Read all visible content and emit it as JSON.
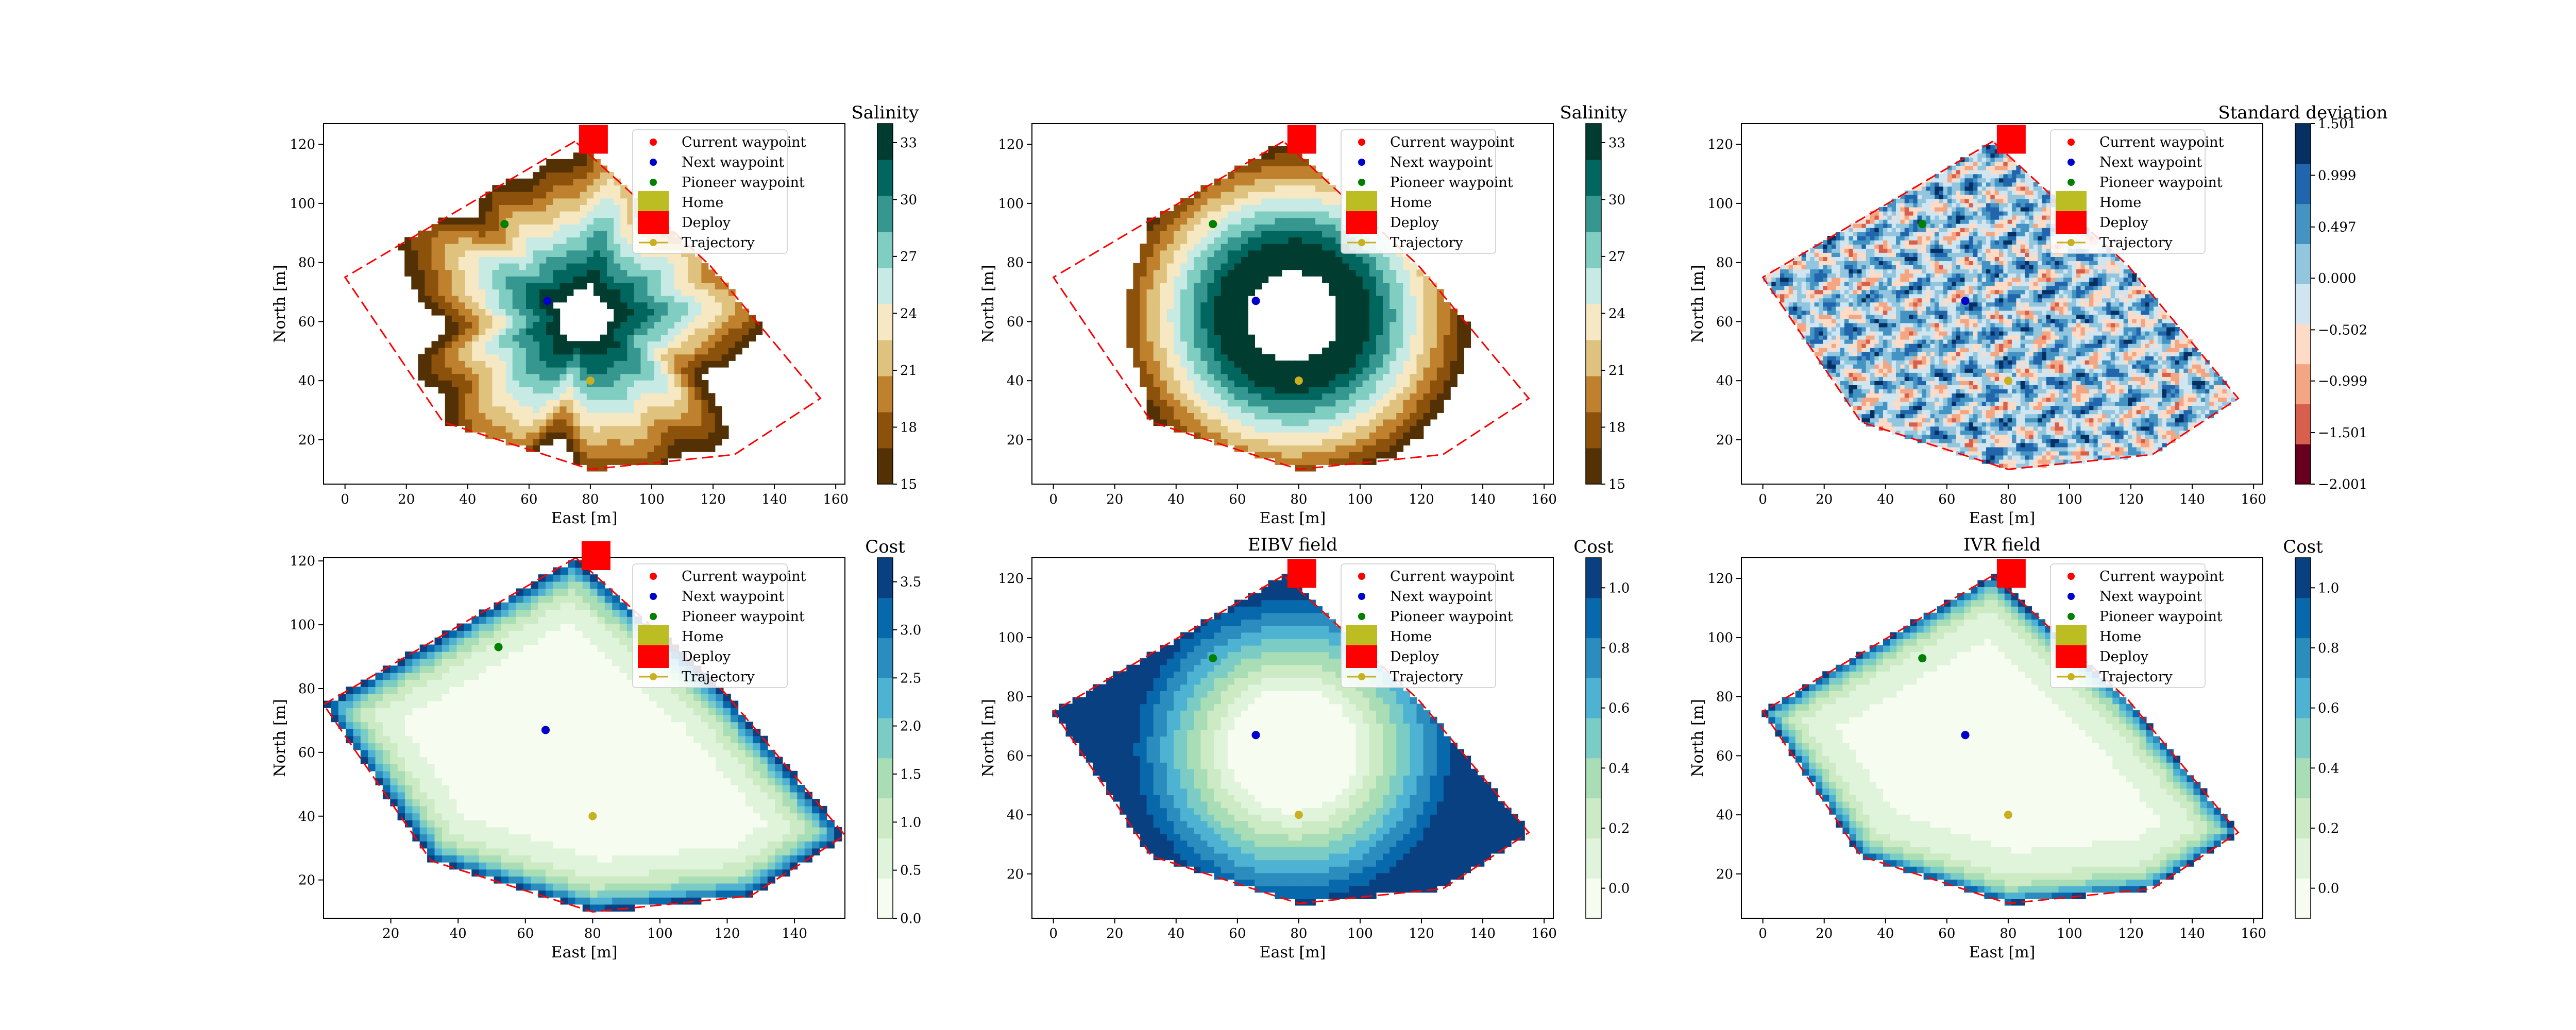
{
  "figure": {
    "layout": "2x3 grid of contour map panels"
  },
  "colors": {
    "boundary": "#ff0000",
    "current": "#ff0000",
    "next": "#0000cc",
    "pioneer": "#008000",
    "home": "#bcbd22",
    "deploy": "#ff0000",
    "trajectory": "#c9b020",
    "colormap_salinity": [
      "#543005",
      "#8c510a",
      "#bf812d",
      "#dfc27d",
      "#f6e8c3",
      "#c7eae5",
      "#80cdc1",
      "#35978f",
      "#01665e",
      "#003c30"
    ],
    "colormap_std": [
      "#67001f",
      "#d6604d",
      "#f4a582",
      "#fddbc7",
      "#d1e5f0",
      "#92c5de",
      "#4393c3",
      "#2166ac",
      "#053061"
    ],
    "colormap_cost": [
      "#f7fcf0",
      "#e0f3db",
      "#ccebc5",
      "#a8ddb5",
      "#7bccc4",
      "#4eb3d3",
      "#2b8cbe",
      "#0868ac",
      "#084081"
    ]
  },
  "legend": {
    "current": "Current waypoint",
    "next": "Next waypoint",
    "pioneer": "Pioneer waypoint",
    "home": "Home",
    "deploy": "Deploy",
    "trajectory": "Trajectory"
  },
  "chart_data": [
    {
      "type": "heatmap",
      "id": "salinity-field-a",
      "title": "",
      "xlabel": "East [m]",
      "ylabel": "North [m]",
      "xlim": [
        -7,
        163
      ],
      "ylim": [
        5,
        127
      ],
      "xticks": [
        0,
        20,
        40,
        60,
        80,
        100,
        120,
        140,
        160
      ],
      "yticks": [
        20,
        40,
        60,
        80,
        100,
        120
      ],
      "colorbar": {
        "label": "Salinity",
        "ticks": [
          "15",
          "18",
          "21",
          "24",
          "27",
          "30",
          "33"
        ],
        "range": [
          15,
          34
        ],
        "colormap": "colormap_salinity"
      },
      "field": "blob",
      "polygon": [
        [
          75,
          121
        ],
        [
          0,
          75
        ],
        [
          32,
          26
        ],
        [
          80,
          10
        ],
        [
          127,
          15
        ],
        [
          155,
          34
        ],
        [
          119,
          79
        ]
      ],
      "waypoints": {
        "current": [
          66,
          67
        ],
        "next": [
          66,
          67
        ],
        "pioneer": [
          52,
          93
        ],
        "home": [
          81,
          121
        ],
        "deploy": [
          81,
          121
        ],
        "trajectory": [
          [
            80,
            40
          ]
        ]
      },
      "grid": false,
      "legend_position": "upper-right"
    },
    {
      "type": "heatmap",
      "id": "salinity-field-b",
      "title": "",
      "xlabel": "East [m]",
      "ylabel": "North [m]",
      "xlim": [
        -7,
        163
      ],
      "ylim": [
        5,
        127
      ],
      "xticks": [
        0,
        20,
        40,
        60,
        80,
        100,
        120,
        140,
        160
      ],
      "yticks": [
        20,
        40,
        60,
        80,
        100,
        120
      ],
      "colorbar": {
        "label": "Salinity",
        "ticks": [
          "15",
          "18",
          "21",
          "24",
          "27",
          "30",
          "33"
        ],
        "range": [
          15,
          34
        ],
        "colormap": "colormap_salinity"
      },
      "field": "ring",
      "polygon": [
        [
          75,
          121
        ],
        [
          0,
          75
        ],
        [
          32,
          26
        ],
        [
          80,
          10
        ],
        [
          127,
          15
        ],
        [
          155,
          34
        ],
        [
          119,
          79
        ]
      ],
      "waypoints": {
        "current": [
          66,
          67
        ],
        "next": [
          66,
          67
        ],
        "pioneer": [
          52,
          93
        ],
        "home": [
          81,
          121
        ],
        "deploy": [
          81,
          121
        ],
        "trajectory": [
          [
            80,
            40
          ]
        ]
      },
      "grid": false,
      "legend_position": "upper-right"
    },
    {
      "type": "heatmap",
      "id": "std-field",
      "title": "",
      "xlabel": "East [m]",
      "ylabel": "North [m]",
      "xlim": [
        -7,
        163
      ],
      "ylim": [
        5,
        127
      ],
      "xticks": [
        0,
        20,
        40,
        60,
        80,
        100,
        120,
        140,
        160
      ],
      "yticks": [
        20,
        40,
        60,
        80,
        100,
        120
      ],
      "colorbar": {
        "label": "Standard deviation",
        "ticks": [
          "−2.001",
          "−1.501",
          "−0.999",
          "−0.502",
          "0.000",
          "0.497",
          "0.999",
          "1.501"
        ],
        "range": [
          -2.001,
          1.501
        ],
        "colormap": "colormap_std"
      },
      "field": "noise",
      "polygon": [
        [
          75,
          121
        ],
        [
          0,
          75
        ],
        [
          32,
          26
        ],
        [
          80,
          10
        ],
        [
          127,
          15
        ],
        [
          155,
          34
        ],
        [
          119,
          79
        ]
      ],
      "waypoints": {
        "current": [
          66,
          67
        ],
        "next": [
          66,
          67
        ],
        "pioneer": [
          52,
          93
        ],
        "home": [
          81,
          121
        ],
        "deploy": [
          81,
          121
        ],
        "trajectory": [
          [
            80,
            40
          ]
        ]
      },
      "grid": false,
      "legend_position": "upper-right"
    },
    {
      "type": "heatmap",
      "id": "cost-field",
      "title": "",
      "xlabel": "East [m]",
      "ylabel": "North [m]",
      "xlim": [
        0,
        155
      ],
      "ylim": [
        8,
        121
      ],
      "xticks": [
        20,
        40,
        60,
        80,
        100,
        120,
        140
      ],
      "yticks": [
        20,
        40,
        60,
        80,
        100,
        120
      ],
      "colorbar": {
        "label": "Cost",
        "ticks": [
          "0.0",
          "0.5",
          "1.0",
          "1.5",
          "2.0",
          "2.5",
          "3.0",
          "3.5"
        ],
        "range": [
          0,
          3.75
        ],
        "colormap": "colormap_cost"
      },
      "field": "cost",
      "polygon": [
        [
          75,
          121
        ],
        [
          0,
          75
        ],
        [
          32,
          26
        ],
        [
          80,
          10
        ],
        [
          127,
          15
        ],
        [
          155,
          34
        ],
        [
          119,
          79
        ]
      ],
      "waypoints": {
        "current": [
          66,
          67
        ],
        "next": [
          66,
          67
        ],
        "pioneer": [
          52,
          93
        ],
        "home": [
          81,
          121
        ],
        "deploy": [
          81,
          121
        ],
        "trajectory": [
          [
            80,
            40
          ]
        ]
      },
      "grid": false,
      "legend_position": "upper-right"
    },
    {
      "type": "heatmap",
      "id": "eibv-field",
      "title": "EIBV field",
      "xlabel": "East [m]",
      "ylabel": "North [m]",
      "xlim": [
        -7,
        163
      ],
      "ylim": [
        5,
        127
      ],
      "xticks": [
        0,
        20,
        40,
        60,
        80,
        100,
        120,
        140,
        160
      ],
      "yticks": [
        20,
        40,
        60,
        80,
        100,
        120
      ],
      "colorbar": {
        "label": "Cost",
        "ticks": [
          "0.0",
          "0.2",
          "0.4",
          "0.6",
          "0.8",
          "1.0"
        ],
        "range": [
          -0.1,
          1.1
        ],
        "colormap": "colormap_cost"
      },
      "field": "eibv",
      "polygon": [
        [
          75,
          121
        ],
        [
          0,
          75
        ],
        [
          32,
          26
        ],
        [
          80,
          10
        ],
        [
          127,
          15
        ],
        [
          155,
          34
        ],
        [
          119,
          79
        ]
      ],
      "waypoints": {
        "current": [
          66,
          67
        ],
        "next": [
          66,
          67
        ],
        "pioneer": [
          52,
          93
        ],
        "home": [
          81,
          121
        ],
        "deploy": [
          81,
          121
        ],
        "trajectory": [
          [
            80,
            40
          ]
        ]
      },
      "grid": false,
      "legend_position": "upper-right"
    },
    {
      "type": "heatmap",
      "id": "ivr-field",
      "title": "IVR field",
      "xlabel": "East [m]",
      "ylabel": "North [m]",
      "xlim": [
        -7,
        163
      ],
      "ylim": [
        5,
        127
      ],
      "xticks": [
        0,
        20,
        40,
        60,
        80,
        100,
        120,
        140,
        160
      ],
      "yticks": [
        20,
        40,
        60,
        80,
        100,
        120
      ],
      "colorbar": {
        "label": "Cost",
        "ticks": [
          "0.0",
          "0.2",
          "0.4",
          "0.6",
          "0.8",
          "1.0"
        ],
        "range": [
          -0.1,
          1.1
        ],
        "colormap": "colormap_cost"
      },
      "field": "ivr",
      "polygon": [
        [
          75,
          121
        ],
        [
          0,
          75
        ],
        [
          32,
          26
        ],
        [
          80,
          10
        ],
        [
          127,
          15
        ],
        [
          155,
          34
        ],
        [
          119,
          79
        ]
      ],
      "waypoints": {
        "current": [
          66,
          67
        ],
        "next": [
          66,
          67
        ],
        "pioneer": [
          52,
          93
        ],
        "home": [
          81,
          121
        ],
        "deploy": [
          81,
          121
        ],
        "trajectory": [
          [
            80,
            40
          ]
        ]
      },
      "grid": false,
      "legend_position": "upper-right"
    }
  ]
}
